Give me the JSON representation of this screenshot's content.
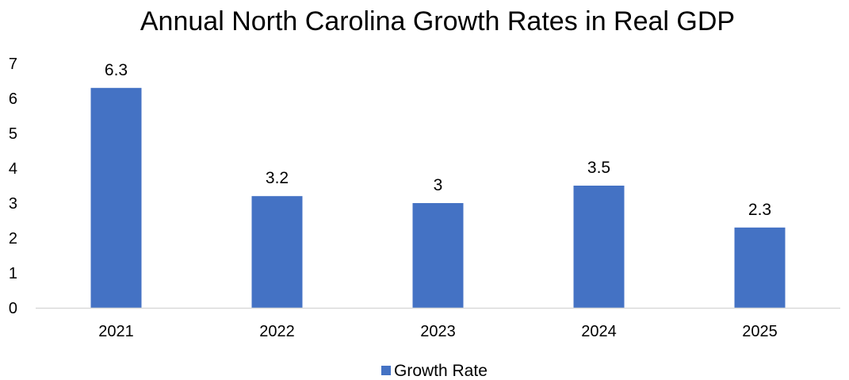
{
  "chart_data": {
    "type": "bar",
    "title": "Annual North Carolina Growth Rates in Real GDP",
    "xlabel": "",
    "ylabel": "",
    "categories": [
      "2021",
      "2022",
      "2023",
      "2024",
      "2025"
    ],
    "series": [
      {
        "name": "Growth Rate",
        "values": [
          6.3,
          3.2,
          3,
          3.5,
          2.3
        ],
        "labels": [
          "6.3",
          "3.2",
          "3",
          "3.5",
          "2.3"
        ],
        "color": "#4472C4"
      }
    ],
    "ylim": [
      0,
      7
    ],
    "yticks": [
      "0",
      "1",
      "2",
      "3",
      "4",
      "5",
      "6",
      "7"
    ],
    "grid": false,
    "legend": "bottom",
    "axis_color": "#D9D9D9"
  }
}
